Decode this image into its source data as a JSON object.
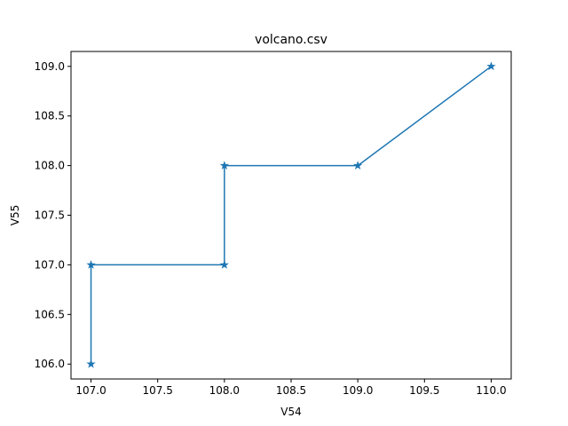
{
  "chart_data": {
    "type": "line",
    "title": "volcano.csv",
    "xlabel": "V54",
    "ylabel": "V55",
    "xlim": [
      106.85,
      110.15
    ],
    "ylim": [
      105.85,
      109.15
    ],
    "xticks": [
      "107.0",
      "107.5",
      "108.0",
      "108.5",
      "109.0",
      "109.5",
      "110.0"
    ],
    "xtick_values": [
      107.0,
      107.5,
      108.0,
      108.5,
      109.0,
      109.5,
      110.0
    ],
    "yticks": [
      "106.0",
      "106.5",
      "107.0",
      "107.5",
      "108.0",
      "108.5",
      "109.0"
    ],
    "ytick_values": [
      106.0,
      106.5,
      107.0,
      107.5,
      108.0,
      108.5,
      109.0
    ],
    "grid": false,
    "marker": "star",
    "color": "#1f77b4",
    "series": [
      {
        "x": [
          107,
          107,
          108,
          108,
          109,
          110
        ],
        "y": [
          106,
          107,
          107,
          108,
          108,
          109
        ]
      }
    ]
  }
}
